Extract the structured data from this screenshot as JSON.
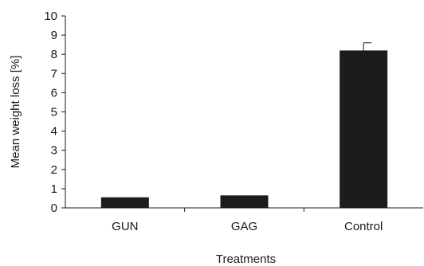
{
  "chart_data": {
    "type": "bar",
    "categories": [
      "GUN",
      "GAG",
      "Control"
    ],
    "values": [
      0.55,
      0.65,
      8.2
    ],
    "error_bars": [
      0,
      0,
      0.4
    ],
    "xlabel": "Treatments",
    "ylabel": "Mean weight loss [%]",
    "ylim": [
      0,
      10
    ],
    "yticks": [
      0,
      1,
      2,
      3,
      4,
      5,
      6,
      7,
      8,
      9,
      10
    ],
    "bar_color": "#1c1c1c",
    "grid": false,
    "legend": "none"
  }
}
